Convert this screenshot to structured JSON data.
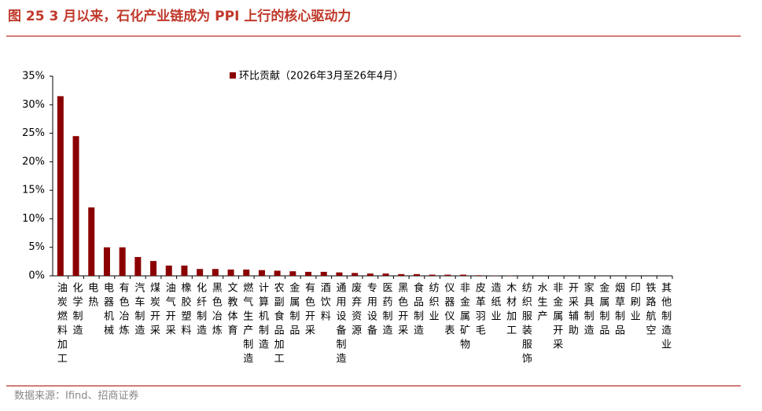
{
  "chart_data": {
    "type": "bar",
    "title": "图 25 3 月以来，石化产业链成为 PPI 上行的核心驱动力",
    "categories": [
      "油炭燃料加工",
      "化学制造",
      "电热",
      "电器机械",
      "有色冶炼",
      "汽车制造",
      "煤炭开采",
      "油气开采",
      "橡胶塑料",
      "化纤制造",
      "黑色冶炼",
      "文教体育",
      "燃气生产制造",
      "计算机制造",
      "农副食品加工",
      "金属制品",
      "有色开采",
      "酒饮料",
      "通用设备制造",
      "废弃资源",
      "专用设备",
      "医药制造",
      "黑色开采",
      "食品制造",
      "纺织业",
      "仪器仪表",
      "非金属矿物",
      "皮革羽毛",
      "造纸业",
      "木材加工",
      "纺织服装服饰",
      "水生产",
      "非金属开采",
      "开采辅助",
      "家具制造",
      "金属制品",
      "烟草制品",
      "印刷业",
      "铁路航空",
      "其他制造业"
    ],
    "series": [
      {
        "name": "环比贡献（2026年3月至26年4月）",
        "color": "#8b0000",
        "values": [
          31.5,
          24.5,
          12.0,
          5.0,
          5.0,
          3.3,
          2.6,
          1.8,
          1.8,
          1.2,
          1.2,
          1.1,
          1.1,
          1.0,
          0.9,
          0.8,
          0.7,
          0.7,
          0.6,
          0.5,
          0.4,
          0.4,
          0.3,
          0.3,
          0.2,
          0.2,
          0.2,
          0.1,
          0.05,
          0.05,
          0,
          0,
          0,
          0,
          0,
          0,
          0,
          0,
          0,
          0
        ]
      }
    ],
    "ylim": [
      0,
      35
    ],
    "yticks": [
      {
        "value": 0,
        "label": "0%"
      },
      {
        "value": 5,
        "label": "5%"
      },
      {
        "value": 10,
        "label": "10%"
      },
      {
        "value": 15,
        "label": "15%"
      },
      {
        "value": 20,
        "label": "20%"
      },
      {
        "value": 25,
        "label": "25%"
      },
      {
        "value": 30,
        "label": "30%"
      },
      {
        "value": 35,
        "label": "35%"
      }
    ]
  },
  "source": "数据来源：Ifind、招商证券"
}
